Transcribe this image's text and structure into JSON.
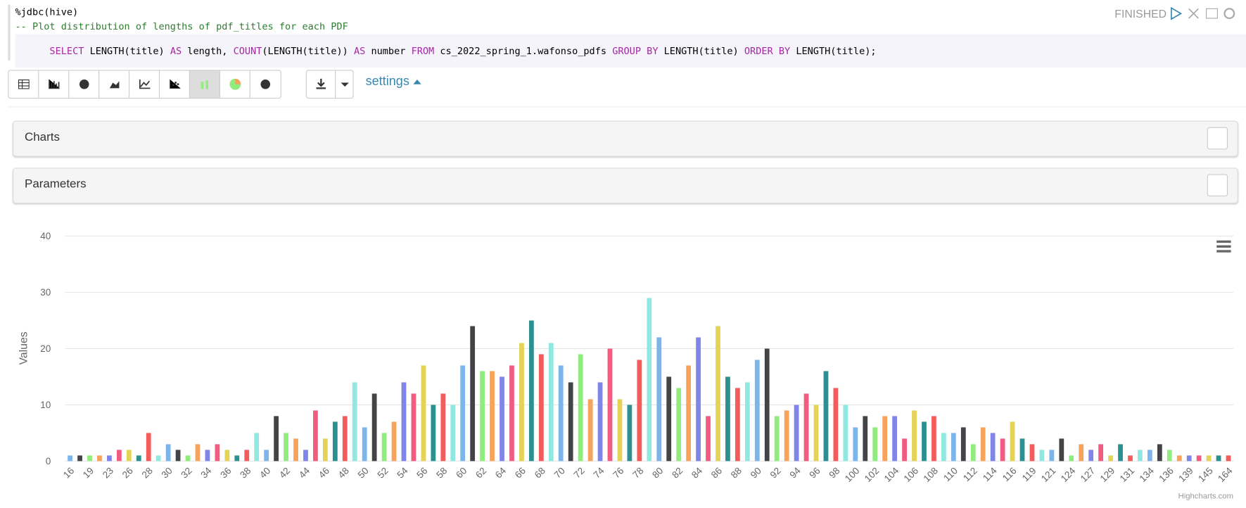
{
  "editor": {
    "interpreter": "%jdbc(hive)",
    "comment": "-- Plot distribution of lengths of pdf_titles for each PDF",
    "query": [
      "SELECT",
      " LENGTH(title) ",
      "AS",
      " length, ",
      "COUNT",
      "(LENGTH(title)) ",
      "AS",
      " number ",
      "FROM",
      " cs_2022_spring_1.wafonso_pdfs ",
      "GROUP BY",
      " LENGTH(title) ",
      "ORDER BY",
      " LENGTH(title);"
    ],
    "status": "FINISHED"
  },
  "toolbar": {
    "settings": "settings"
  },
  "panels": [
    "Charts",
    "Parameters"
  ],
  "chart_data": {
    "type": "bar",
    "ylabel": "Values",
    "credit": "Highcharts.com",
    "categories": [
      "16",
      null,
      "19",
      null,
      "23",
      null,
      "26",
      null,
      "28",
      null,
      "30",
      null,
      "32",
      null,
      "34",
      null,
      "36",
      null,
      "38",
      null,
      "40",
      null,
      "42",
      null,
      "44",
      null,
      "46",
      null,
      "48",
      null,
      "50",
      null,
      "52",
      null,
      "54",
      null,
      "56",
      null,
      "58",
      null,
      "60",
      null,
      "62",
      null,
      "64",
      null,
      "66",
      null,
      "68",
      null,
      "70",
      null,
      "72",
      null,
      "74",
      null,
      "76",
      null,
      "78",
      null,
      "80",
      null,
      "82",
      null,
      "84",
      null,
      "86",
      null,
      "88",
      null,
      "90",
      null,
      "92",
      null,
      "94",
      null,
      "96",
      null,
      "98",
      null,
      "100",
      null,
      "102",
      null,
      "104",
      null,
      "106",
      null,
      "108",
      null,
      "110",
      null,
      "112",
      null,
      "114",
      null,
      "116",
      null,
      "119",
      null,
      "121",
      null,
      "124",
      null,
      "127",
      null,
      "129",
      null,
      "131",
      null,
      "134",
      null,
      "136",
      null,
      "139",
      null,
      "145",
      null,
      "164"
    ],
    "values": [
      1,
      1,
      1,
      1,
      1,
      2,
      2,
      1,
      5,
      1,
      3,
      2,
      1,
      3,
      2,
      3,
      2,
      1,
      2,
      5,
      2,
      8,
      5,
      4,
      2,
      9,
      4,
      7,
      8,
      14,
      6,
      12,
      5,
      7,
      14,
      12,
      17,
      10,
      12,
      10,
      17,
      24,
      16,
      16,
      15,
      17,
      21,
      25,
      19,
      21,
      17,
      14,
      19,
      11,
      14,
      20,
      11,
      10,
      18,
      29,
      22,
      15,
      13,
      17,
      22,
      8,
      24,
      15,
      13,
      14,
      18,
      20,
      8,
      9,
      10,
      12,
      10,
      16,
      13,
      10,
      6,
      8,
      6,
      8,
      8,
      4,
      9,
      7,
      8,
      5,
      5,
      6,
      3,
      6,
      5,
      4,
      7,
      4,
      3,
      2,
      2,
      4,
      1,
      3,
      2,
      3,
      1,
      3,
      1,
      2,
      2,
      3,
      2,
      1,
      1,
      1,
      1,
      1,
      1
    ],
    "colors": [
      "#7cb5ec",
      "#434348",
      "#90ed7d",
      "#f7a35c",
      "#8085e9",
      "#f15c80",
      "#e4d354",
      "#2b908f",
      "#f45b5b",
      "#91e8e1"
    ],
    "ylim": [
      0,
      40
    ],
    "yticks": [
      0,
      10,
      20,
      30,
      40
    ],
    "grid": true
  }
}
